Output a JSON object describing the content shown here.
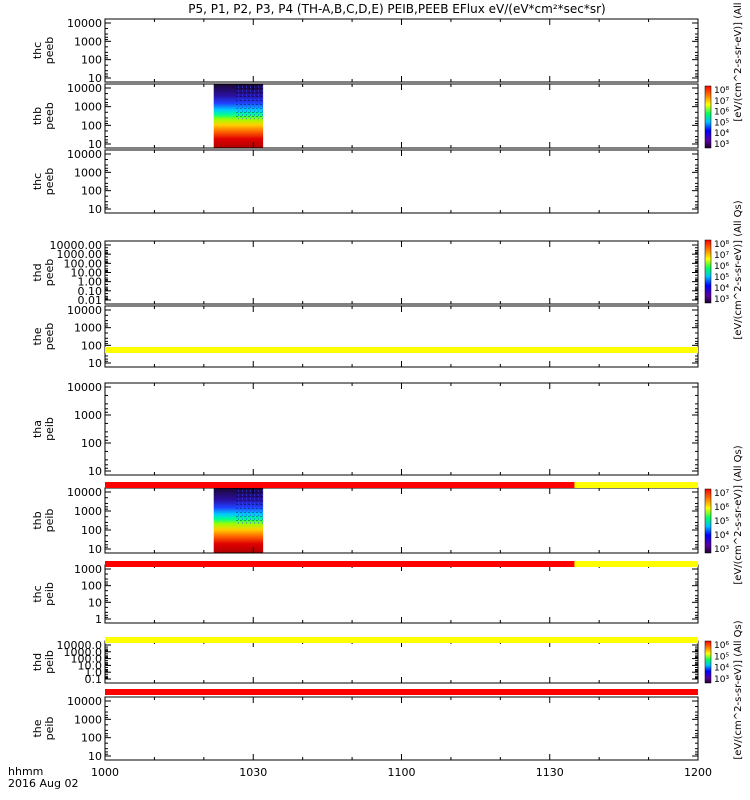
{
  "title": "P5, P1, P2, P3, P4 (TH-A,B,C,D,E) PEIB,PEEB EFlux eV/(eV*cm²*sec*sr)",
  "bottom_labels": {
    "line1": "hhmm",
    "line2": "2016 Aug 02"
  },
  "colorbar_label": "[eV/(cm^2-s-sr-eV)] (All Qs)",
  "colors": {
    "state_yellow": "#ffff00",
    "state_red": "#ff0000",
    "spectrogram_low": "#b40000",
    "spectrogram_mid": "#00ff00",
    "spectrogram_high": "#1010a0"
  },
  "chart_data": {
    "type": "heatmap",
    "x_ticks": [
      "1000",
      "1030",
      "1100",
      "1130",
      "1200"
    ],
    "x_range": [
      "10:00",
      "12:00"
    ],
    "panels": [
      {
        "label": [
          "thc",
          "peeb"
        ],
        "y_ticks": [
          "10000",
          "1000",
          "100",
          "10"
        ],
        "data_span": null,
        "colorbar": null
      },
      {
        "label": [
          "thb",
          "peeb"
        ],
        "y_ticks": [
          "10000",
          "1000",
          "100",
          "10"
        ],
        "data_span": [
          "10:22",
          "10:32"
        ],
        "colorbar": {
          "labels": [
            "10⁸",
            "10⁷",
            "10⁶",
            "10⁵",
            "10⁴",
            "10³"
          ]
        }
      },
      {
        "label": [
          "thc",
          "peeb"
        ],
        "y_ticks": [
          "10000",
          "1000",
          "100",
          "10"
        ],
        "data_span": null,
        "colorbar": null
      },
      {
        "label": [
          "thd",
          "peeb"
        ],
        "y_ticks": [
          "10000.00",
          "1000.00",
          "100.00",
          "10.00",
          "1.00",
          "0.10",
          "0.01"
        ],
        "data_span": null,
        "colorbar": {
          "labels": [
            "10⁸",
            "10⁷",
            "10⁶",
            "10⁵",
            "10⁴",
            "10³"
          ]
        }
      },
      {
        "label": [
          "the",
          "peeb"
        ],
        "y_ticks": [
          "10000",
          "1000",
          "100",
          "10"
        ],
        "data_span": null,
        "colorbar": null
      },
      {
        "label": [
          "tha",
          "peib"
        ],
        "y_ticks": [
          "10000",
          "1000",
          "100",
          "10"
        ],
        "data_span": null,
        "colorbar": null
      },
      {
        "label": [
          "thb",
          "peib"
        ],
        "y_ticks": [
          "10000",
          "1000",
          "100",
          "10"
        ],
        "data_span": [
          "10:22",
          "10:32"
        ],
        "colorbar": {
          "labels": [
            "10⁷",
            "10⁶",
            "10⁵",
            "10⁴",
            "10³"
          ]
        }
      },
      {
        "label": [
          "thc",
          "peib"
        ],
        "y_ticks": [
          "1000",
          "100",
          "10",
          "1"
        ],
        "data_span": null,
        "colorbar": null
      },
      {
        "label": [
          "thd",
          "peib"
        ],
        "y_ticks": [
          "10000.0",
          "1000.0",
          "100.0",
          "10.0",
          "1.0",
          "0.1"
        ],
        "data_span": null,
        "colorbar": {
          "labels": [
            "10⁶",
            "10⁵",
            "10⁴",
            "10³"
          ]
        }
      },
      {
        "label": [
          "the",
          "peib"
        ],
        "y_ticks": [
          "10000",
          "1000",
          "100",
          "10"
        ],
        "data_span": null,
        "colorbar": null
      }
    ],
    "state_bars": [
      {
        "segments": [
          {
            "from": "10:00",
            "to": "12:00",
            "color": "yellow"
          }
        ]
      },
      {
        "segments": [
          {
            "from": "10:00",
            "to": "11:35",
            "color": "red"
          },
          {
            "from": "11:35",
            "to": "12:00",
            "color": "yellow"
          }
        ]
      },
      {
        "segments": [
          {
            "from": "10:00",
            "to": "11:35",
            "color": "red"
          },
          {
            "from": "11:35",
            "to": "12:00",
            "color": "yellow"
          }
        ]
      },
      {
        "segments": [
          {
            "from": "10:00",
            "to": "12:00",
            "color": "yellow"
          }
        ]
      },
      {
        "segments": [
          {
            "from": "10:00",
            "to": "12:00",
            "color": "red"
          }
        ]
      }
    ]
  }
}
